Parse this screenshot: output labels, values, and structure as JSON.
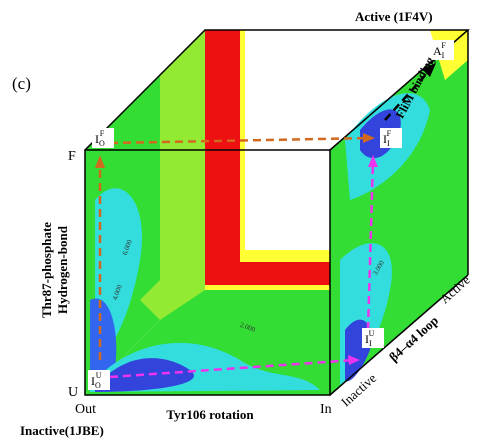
{
  "panel": "(c)",
  "corner_top": "Active (1F4V)",
  "corner_bottom": "Inactive(1JBE)",
  "y_axis": {
    "lines": [
      "Thr87-phosphate",
      "Hydrogen-bond"
    ],
    "top": "F",
    "bottom": "U"
  },
  "x_axis": {
    "label": "Tyr106 rotation",
    "left": "Out",
    "right": "In"
  },
  "z_axis": {
    "label": "β4–α4 loop",
    "start": "Inactive",
    "end": "Active"
  },
  "arrow_label": "FliM binding",
  "states": [
    {
      "base": "I",
      "sub": "O",
      "sup": "F"
    },
    {
      "base": "I",
      "sub": "I",
      "sup": "F"
    },
    {
      "base": "I",
      "sub": "O",
      "sup": "U"
    },
    {
      "base": "I",
      "sub": "I",
      "sup": "U"
    },
    {
      "base": "A",
      "sub": "I",
      "sup": "F"
    }
  ],
  "contour_labels": [
    "6.000",
    "4.000",
    "2.000",
    "3.000"
  ]
}
